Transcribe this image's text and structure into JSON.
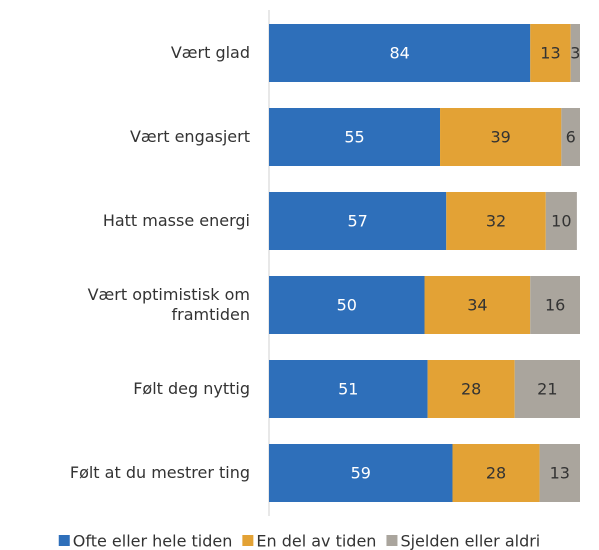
{
  "chart_data": {
    "type": "stacked-bar",
    "orientation": "horizontal",
    "categories": [
      "Vært glad",
      "Vært engasjert",
      "Hatt masse energi",
      "Vært optimistisk om framtiden",
      "Følt deg nyttig",
      "Følt at du mestrer ting"
    ],
    "series": [
      {
        "name": "Ofte eller hele tiden",
        "color": "#2e6fba",
        "values": [
          84,
          55,
          57,
          50,
          51,
          59
        ]
      },
      {
        "name": "En del av tiden",
        "color": "#e3a235",
        "values": [
          13,
          39,
          32,
          34,
          28,
          28
        ]
      },
      {
        "name": "Sjelden eller aldri",
        "color": "#aaa59d",
        "values": [
          3,
          6,
          10,
          16,
          21,
          13
        ]
      }
    ],
    "xlim": [
      0,
      100
    ],
    "legend": "bottom"
  }
}
